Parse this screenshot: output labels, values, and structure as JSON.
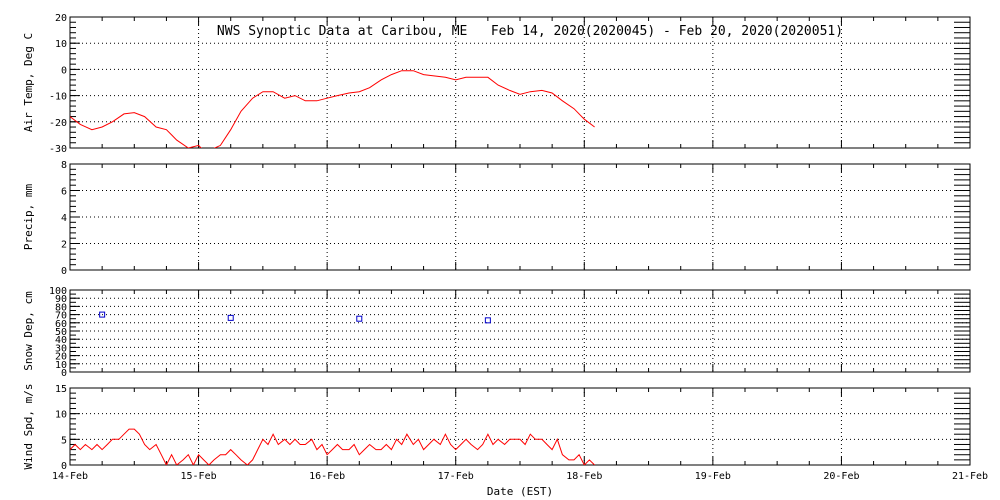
{
  "chart_data": {
    "title": "NWS Synoptic Data at Caribou, ME   Feb 14, 2020(2020045) - Feb 20, 2020(2020051)",
    "xlabel": "Date (EST)",
    "x_tick_labels": [
      "14-Feb",
      "15-Feb",
      "16-Feb",
      "17-Feb",
      "18-Feb",
      "19-Feb",
      "20-Feb",
      "21-Feb"
    ],
    "x_range_days": [
      0,
      7
    ],
    "grid": "dotted",
    "panels": [
      {
        "id": "air-temp",
        "type": "line",
        "ylabel": "Air Temp, Deg C",
        "ylim": [
          -30,
          20
        ],
        "yticks": [
          -30,
          -20,
          -10,
          0,
          10,
          20
        ],
        "color": "#ff0000",
        "x": [
          0.0,
          0.08,
          0.17,
          0.25,
          0.33,
          0.42,
          0.5,
          0.58,
          0.67,
          0.75,
          0.79,
          0.83,
          0.92,
          1.0,
          1.04,
          1.08,
          1.17,
          1.25,
          1.33,
          1.42,
          1.5,
          1.58,
          1.67,
          1.75,
          1.83,
          1.92,
          2.0,
          2.08,
          2.17,
          2.25,
          2.33,
          2.42,
          2.5,
          2.58,
          2.67,
          2.75,
          2.83,
          2.92,
          3.0,
          3.08,
          3.17,
          3.25,
          3.33,
          3.42,
          3.5,
          3.58,
          3.67,
          3.75,
          3.83,
          3.92,
          4.0,
          4.08
        ],
        "values": [
          -18,
          -21,
          -23,
          -22,
          -20,
          -17,
          -16.5,
          -18,
          -22,
          -23,
          -25,
          -27,
          -30,
          -29,
          -31,
          -31,
          -29,
          -23,
          -16,
          -11,
          -8.5,
          -8.5,
          -11,
          -10,
          -12,
          -12,
          -11,
          -10,
          -9,
          -8.5,
          -7,
          -4,
          -2,
          -0.5,
          -0.5,
          -2,
          -2.5,
          -3,
          -4,
          -3,
          -3,
          -3,
          -6,
          -8,
          -9.5,
          -8.5,
          -8,
          -9,
          -12,
          -15,
          -19,
          -22
        ]
      },
      {
        "id": "precip",
        "type": "line",
        "ylabel": "Precip, mm",
        "ylim": [
          0,
          8
        ],
        "yticks": [
          0,
          2,
          4,
          6,
          8
        ],
        "color": "#ff0000",
        "x": [],
        "values": []
      },
      {
        "id": "snow-depth",
        "type": "scatter",
        "ylabel": "Snow Dep, cm",
        "ylim": [
          0,
          100
        ],
        "yticks": [
          0,
          10,
          20,
          30,
          40,
          50,
          60,
          70,
          80,
          90,
          100
        ],
        "color": "#0000cc",
        "x": [
          0.25,
          1.25,
          2.25,
          3.25
        ],
        "values": [
          70,
          66,
          65,
          63
        ]
      },
      {
        "id": "wind-speed",
        "type": "line",
        "ylabel": "Wind Spd, m/s",
        "ylim": [
          0,
          15
        ],
        "yticks": [
          0,
          5,
          10,
          15
        ],
        "color": "#ff0000",
        "x": [
          0.0,
          0.04,
          0.08,
          0.12,
          0.17,
          0.21,
          0.25,
          0.29,
          0.33,
          0.38,
          0.42,
          0.46,
          0.5,
          0.54,
          0.58,
          0.62,
          0.67,
          0.71,
          0.75,
          0.79,
          0.83,
          0.88,
          0.92,
          0.96,
          1.0,
          1.04,
          1.08,
          1.12,
          1.17,
          1.21,
          1.25,
          1.29,
          1.33,
          1.38,
          1.42,
          1.46,
          1.5,
          1.54,
          1.58,
          1.62,
          1.67,
          1.71,
          1.75,
          1.79,
          1.83,
          1.88,
          1.92,
          1.96,
          2.0,
          2.04,
          2.08,
          2.12,
          2.17,
          2.21,
          2.25,
          2.29,
          2.33,
          2.38,
          2.42,
          2.46,
          2.5,
          2.54,
          2.58,
          2.62,
          2.67,
          2.71,
          2.75,
          2.79,
          2.83,
          2.88,
          2.92,
          2.96,
          3.0,
          3.04,
          3.08,
          3.12,
          3.17,
          3.21,
          3.25,
          3.29,
          3.33,
          3.38,
          3.42,
          3.46,
          3.5,
          3.54,
          3.58,
          3.62,
          3.67,
          3.71,
          3.75,
          3.79,
          3.83,
          3.88,
          3.92,
          3.96,
          4.0,
          4.04,
          4.08
        ],
        "values": [
          3,
          4,
          3,
          4,
          3,
          4,
          3,
          4,
          5,
          5,
          6,
          7,
          7,
          6,
          4,
          3,
          4,
          2,
          0,
          2,
          0,
          1,
          2,
          0,
          2,
          1,
          0,
          1,
          2,
          2,
          3,
          2,
          1,
          0,
          1,
          3,
          5,
          4,
          6,
          4,
          5,
          4,
          5,
          4,
          4,
          5,
          3,
          4,
          2,
          3,
          4,
          3,
          3,
          4,
          2,
          3,
          4,
          3,
          3,
          4,
          3,
          5,
          4,
          6,
          4,
          5,
          3,
          4,
          5,
          4,
          6,
          4,
          3,
          4,
          5,
          4,
          3,
          4,
          6,
          4,
          5,
          4,
          5,
          5,
          5,
          4,
          6,
          5,
          5,
          4,
          3,
          5,
          2,
          1,
          1,
          2,
          0,
          1,
          0
        ]
      }
    ]
  }
}
